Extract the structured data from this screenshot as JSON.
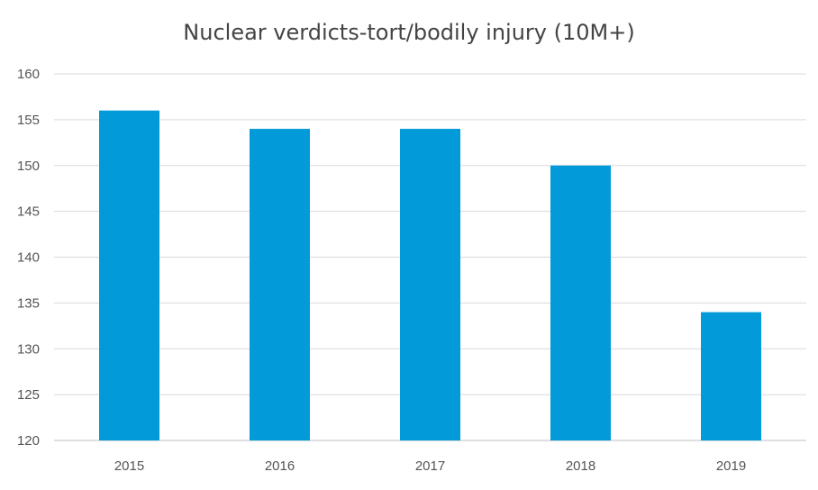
{
  "chart_data": {
    "type": "bar",
    "title": "Nuclear verdicts-tort/bodily injury (10M+)",
    "xlabel": "",
    "ylabel": "",
    "categories": [
      "2015",
      "2016",
      "2017",
      "2018",
      "2019"
    ],
    "values": [
      156,
      154,
      154,
      150,
      134
    ],
    "ylim": [
      120,
      160
    ],
    "yticks": [
      "120",
      "125",
      "130",
      "135",
      "140",
      "145",
      "150",
      "155",
      "160"
    ],
    "grid": true,
    "legend": "none",
    "colors": {
      "bar": "#039ad9",
      "grid": "#d9d9d9",
      "axis_text": "#555555",
      "title": "#444444"
    }
  }
}
